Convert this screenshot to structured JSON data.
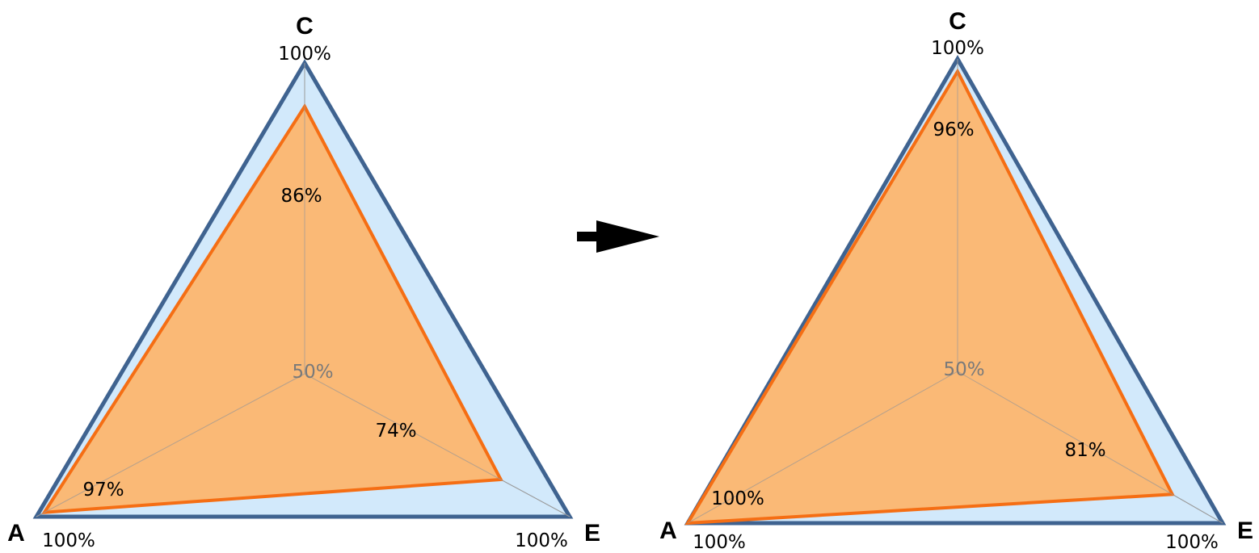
{
  "colors": {
    "outer_fill": "#d2e9fb",
    "outer_stroke": "#3f6390",
    "inner_fill": "#fdb46a",
    "inner_stroke": "#f56e14",
    "axis": "#9a9a9a",
    "arrow": "#000000"
  },
  "arrow_icon": "right-arrow-icon",
  "chart_data": [
    {
      "type": "radar",
      "axes": [
        "C",
        "A",
        "E"
      ],
      "scale_max": 100,
      "center_label": "50%",
      "series": [
        {
          "values": [
            100,
            100,
            100
          ],
          "labels": [
            "100%",
            "100%",
            "100%"
          ]
        },
        {
          "values": [
            86,
            97,
            74
          ],
          "labels": [
            "86%",
            "97%",
            "74%"
          ]
        }
      ]
    },
    {
      "type": "radar",
      "axes": [
        "C",
        "A",
        "E"
      ],
      "scale_max": 100,
      "center_label": "50%",
      "series": [
        {
          "values": [
            100,
            100,
            100
          ],
          "labels": [
            "100%",
            "100%",
            "100%"
          ]
        },
        {
          "values": [
            96,
            100,
            81
          ],
          "labels": [
            "96%",
            "100%",
            "81%"
          ]
        }
      ]
    }
  ]
}
